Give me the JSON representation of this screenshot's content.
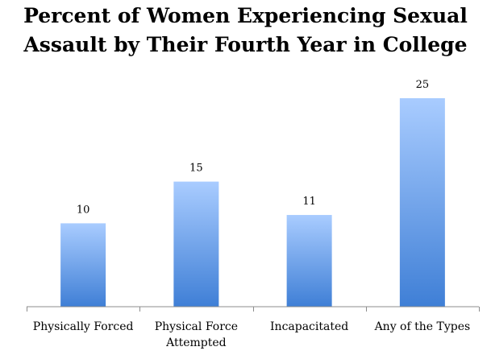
{
  "chart_data": {
    "type": "bar",
    "title_lines": [
      "Percent of Women Experiencing Sexual",
      "Assault by Their Fourth Year in College"
    ],
    "categories": [
      [
        "Physically Forced"
      ],
      [
        "Physical Force",
        "Attempted"
      ],
      [
        "Incapacitated"
      ],
      [
        "Any of the Types"
      ]
    ],
    "values": [
      10,
      15,
      11,
      25
    ],
    "data_labels": [
      "10",
      "15",
      "11",
      "25"
    ],
    "xlabel": "",
    "ylabel": "",
    "ylim": [
      0,
      30
    ],
    "grid": false,
    "legend": "none",
    "colors": {
      "bar_top": "#a9ccff",
      "bar_bottom": "#3f7fd6",
      "axis": "#8c8c8c",
      "text": "#000000"
    }
  }
}
